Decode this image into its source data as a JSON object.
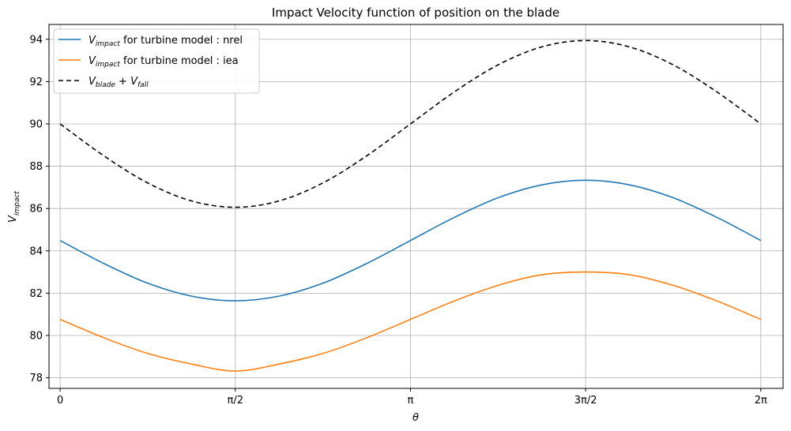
{
  "chart_data": {
    "type": "line",
    "title": "Impact Velocity function of position on the blade",
    "xlabel": "θ",
    "ylabel": {
      "base": "V",
      "sub": "impact"
    },
    "xlim": [
      -0.1,
      6.4832
    ],
    "ylim": [
      77.5,
      94.7
    ],
    "x_ticks": [
      {
        "value": 0,
        "label": "0"
      },
      {
        "value": 1.5708,
        "label": "π/2"
      },
      {
        "value": 3.14159,
        "label": "π"
      },
      {
        "value": 4.71239,
        "label": "3π/2"
      },
      {
        "value": 6.28319,
        "label": "2π"
      }
    ],
    "y_ticks": [
      78,
      80,
      82,
      84,
      86,
      88,
      90,
      92,
      94
    ],
    "grid": true,
    "legend_position": "top-left",
    "series": [
      {
        "name_base": "V",
        "name_sub": "impact",
        "name_suffix": " for turbine model : nrel",
        "color": "#1f77b4",
        "dash": "solid",
        "x": [
          0,
          0.3927,
          0.7854,
          1.1781,
          1.5708,
          1.9635,
          2.3562,
          2.7489,
          3.1416,
          3.5343,
          3.927,
          4.3197,
          4.7124,
          5.1051,
          5.4978,
          5.8905,
          6.2832
        ],
        "y": [
          84.49,
          83.4,
          82.47,
          81.86,
          81.64,
          81.86,
          82.47,
          83.4,
          84.49,
          85.58,
          86.51,
          87.12,
          87.34,
          87.12,
          86.51,
          85.58,
          84.49
        ]
      },
      {
        "name_base": "V",
        "name_sub": "impact",
        "name_suffix": " for turbine model : iea",
        "color": "#ff7f0e",
        "dash": "solid",
        "x": [
          0,
          0.3927,
          0.7854,
          1.1781,
          1.5708,
          1.9635,
          2.3562,
          2.7489,
          3.1416,
          3.5343,
          3.927,
          4.3197,
          4.7124,
          5.1051,
          5.4978,
          5.8905,
          6.2832
        ],
        "y": [
          80.76,
          79.89,
          79.15,
          78.65,
          78.32,
          78.65,
          79.15,
          79.89,
          80.76,
          81.63,
          82.37,
          82.87,
          83.0,
          82.87,
          82.37,
          81.63,
          80.76
        ]
      },
      {
        "name_base_1": "V",
        "name_sub_1": "blade",
        "name_plus": " + ",
        "name_base_2": "V",
        "name_sub_2": "fall",
        "color": "#000000",
        "dash": "dashed",
        "x": [
          0,
          0.3927,
          0.7854,
          1.1781,
          1.5708,
          1.9635,
          2.3562,
          2.7489,
          3.1416,
          3.5343,
          3.927,
          4.3197,
          4.7124,
          5.1051,
          5.4978,
          5.8905,
          6.2832
        ],
        "y": [
          90.0,
          88.49,
          87.21,
          86.36,
          86.06,
          86.36,
          87.21,
          88.49,
          90.0,
          91.51,
          92.79,
          93.64,
          93.94,
          93.64,
          92.79,
          91.51,
          90.0
        ]
      }
    ]
  }
}
